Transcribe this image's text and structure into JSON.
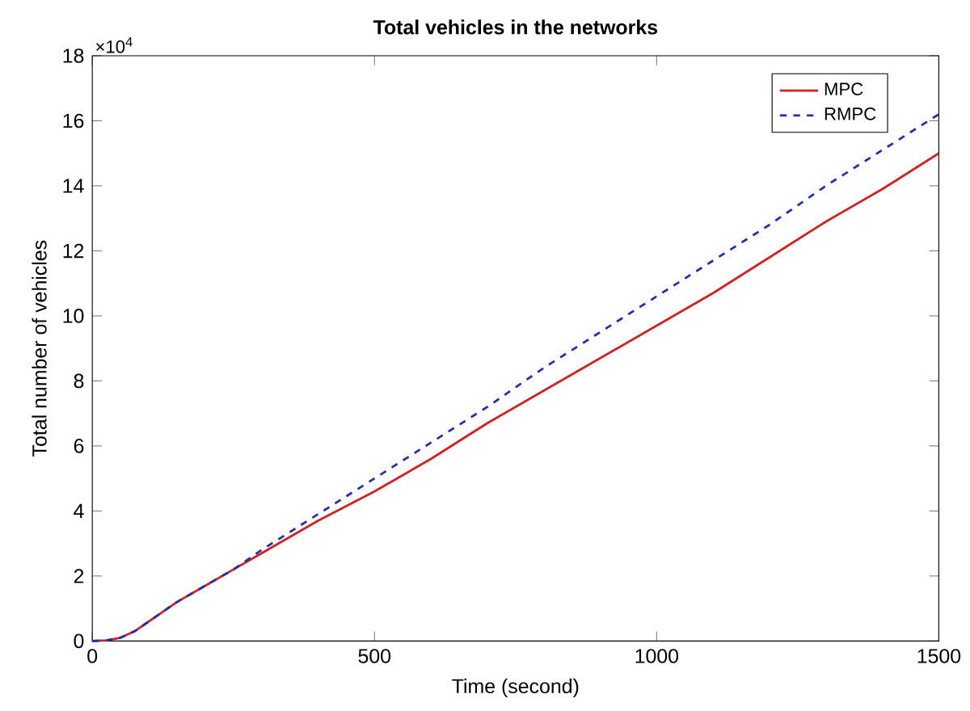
{
  "chart_data": {
    "type": "line",
    "title": "Total vehicles in the networks",
    "xlabel": "Time  (second)",
    "ylabel": "Total number of vehicles",
    "annotations": [
      "×10$^{4}$"
    ],
    "x": [
      0,
      25,
      50,
      75,
      100,
      150,
      200,
      250,
      300,
      400,
      500,
      600,
      700,
      800,
      900,
      1000,
      1100,
      1200,
      1300,
      1400,
      1500
    ],
    "series": [
      {
        "name": "MPC",
        "color": "#d62020",
        "line_style": "solid",
        "values": [
          0,
          0.02,
          0.1,
          0.3,
          0.6,
          1.2,
          1.7,
          2.2,
          2.7,
          3.7,
          4.6,
          5.6,
          6.7,
          7.7,
          8.7,
          9.7,
          10.7,
          11.8,
          12.9,
          13.9,
          15.0
        ]
      },
      {
        "name": "RMPC",
        "color": "#2030b0",
        "line_style": "dashed",
        "values": [
          0,
          0.02,
          0.1,
          0.3,
          0.6,
          1.2,
          1.7,
          2.2,
          2.8,
          3.9,
          5.0,
          6.1,
          7.2,
          8.4,
          9.5,
          10.6,
          11.7,
          12.8,
          14.0,
          15.1,
          16.2
        ]
      }
    ],
    "xlim": [
      0,
      1500
    ],
    "xticks": [
      0,
      500,
      1000,
      1500
    ],
    "ylim": [
      0,
      18
    ],
    "yticks": [
      0,
      2,
      4,
      6,
      8,
      10,
      12,
      14,
      16,
      18
    ],
    "grid": false,
    "legend": "top right",
    "marker": "none"
  }
}
